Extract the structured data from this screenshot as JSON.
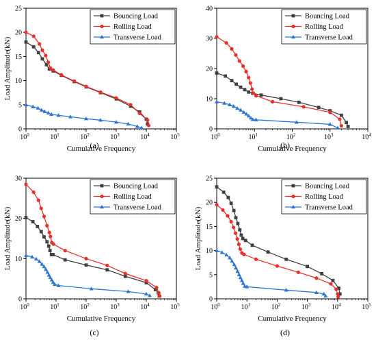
{
  "chart_data": [
    {
      "type": "line",
      "panel_label": "(a)",
      "xlabel": "Cumulative Frequency",
      "ylabel": "Load Amplitude(kN)",
      "xscale": "log",
      "xlim": [
        1,
        100000
      ],
      "ylim": [
        0,
        25
      ],
      "yticks": [
        0,
        5,
        10,
        15,
        20,
        25
      ],
      "legend": "top-right",
      "grid": false,
      "series": [
        {
          "name": "Bouncing Load",
          "color": "#404040",
          "marker": "square",
          "points": [
            [
              1,
              18
            ],
            [
              1.8,
              17
            ],
            [
              2.6,
              15.8
            ],
            [
              3.5,
              14.5
            ],
            [
              4.8,
              13.3
            ],
            [
              6,
              12.4
            ],
            [
              8,
              12
            ],
            [
              15,
              11.1
            ],
            [
              40,
              9.8
            ],
            [
              100,
              8.7
            ],
            [
              300,
              7.5
            ],
            [
              1000,
              6.2
            ],
            [
              3000,
              4.7
            ],
            [
              6000,
              3.5
            ],
            [
              10000,
              2
            ],
            [
              11000,
              1
            ]
          ]
        },
        {
          "name": "Rolling Load",
          "color": "#e8302a",
          "marker": "circle",
          "points": [
            [
              1,
              20
            ],
            [
              1.8,
              19.2
            ],
            [
              2.8,
              17.6
            ],
            [
              3.5,
              16.3
            ],
            [
              4.5,
              15.2
            ],
            [
              5.5,
              13.8
            ],
            [
              6.5,
              12.6
            ],
            [
              8,
              12.2
            ],
            [
              15,
              11.2
            ],
            [
              40,
              9.9
            ],
            [
              100,
              8.8
            ],
            [
              300,
              7.6
            ],
            [
              1000,
              6.4
            ],
            [
              3000,
              5
            ],
            [
              6000,
              3.2
            ],
            [
              11000,
              1.8
            ],
            [
              12000,
              0.7
            ]
          ]
        },
        {
          "name": "Transverse Load",
          "color": "#2e75d1",
          "marker": "triangle",
          "points": [
            [
              1,
              5
            ],
            [
              1.7,
              4.6
            ],
            [
              2.5,
              4.3
            ],
            [
              3.3,
              3.9
            ],
            [
              4.2,
              3.6
            ],
            [
              5.5,
              3.3
            ],
            [
              7,
              3
            ],
            [
              12,
              2.8
            ],
            [
              30,
              2.5
            ],
            [
              100,
              2.1
            ],
            [
              300,
              1.8
            ],
            [
              1000,
              1.4
            ],
            [
              2500,
              1
            ],
            [
              5000,
              0.5
            ],
            [
              7000,
              0.2
            ]
          ]
        }
      ]
    },
    {
      "type": "line",
      "panel_label": "(b)",
      "xlabel": "Cumulative Frequency",
      "ylabel": "",
      "xscale": "log",
      "xlim": [
        1,
        10000
      ],
      "ylim": [
        0,
        40
      ],
      "yticks": [
        0,
        10,
        20,
        30,
        40
      ],
      "legend": "top-right",
      "grid": false,
      "series": [
        {
          "name": "Bouncing Load",
          "color": "#404040",
          "marker": "square",
          "points": [
            [
              1,
              18.5
            ],
            [
              1.7,
              17.5
            ],
            [
              2.5,
              16
            ],
            [
              3.3,
              14.8
            ],
            [
              4.3,
              13.8
            ],
            [
              5.5,
              13
            ],
            [
              7,
              12.2
            ],
            [
              9,
              11.8
            ],
            [
              15,
              11.2
            ],
            [
              50,
              10
            ],
            [
              150,
              8.8
            ],
            [
              500,
              7.1
            ],
            [
              1000,
              6
            ],
            [
              2000,
              4.5
            ],
            [
              2700,
              2.1
            ],
            [
              3000,
              0.8
            ]
          ]
        },
        {
          "name": "Rolling Load",
          "color": "#e8302a",
          "marker": "circle",
          "points": [
            [
              1,
              30.5
            ],
            [
              1.8,
              28.5
            ],
            [
              2.5,
              26.5
            ],
            [
              3.2,
              24.5
            ],
            [
              4,
              22.5
            ],
            [
              5,
              20.8
            ],
            [
              6,
              19
            ],
            [
              7,
              17
            ],
            [
              7.8,
              15.2
            ],
            [
              8.6,
              13.2
            ],
            [
              9.4,
              11.8
            ],
            [
              11,
              11
            ],
            [
              30,
              9
            ],
            [
              200,
              7.3
            ],
            [
              1000,
              5.5
            ],
            [
              1800,
              3.2
            ],
            [
              2000,
              1
            ]
          ]
        },
        {
          "name": "Transverse Load",
          "color": "#2e75d1",
          "marker": "triangle",
          "points": [
            [
              1,
              9
            ],
            [
              1.6,
              8.5
            ],
            [
              2.2,
              8
            ],
            [
              2.8,
              7.5
            ],
            [
              3.5,
              6.8
            ],
            [
              4.3,
              6.2
            ],
            [
              5.2,
              5.5
            ],
            [
              6.1,
              4.9
            ],
            [
              7,
              4.3
            ],
            [
              8,
              3.6
            ],
            [
              9,
              3.1
            ],
            [
              11,
              3
            ],
            [
              130,
              2.2
            ],
            [
              1000,
              1.5
            ],
            [
              1600,
              0.3
            ]
          ]
        }
      ]
    },
    {
      "type": "line",
      "panel_label": "(c)",
      "xlabel": "Cumulative Frequency",
      "ylabel": "Load Amplitude(kN)",
      "xscale": "log",
      "xlim": [
        1,
        100000
      ],
      "ylim": [
        0,
        30
      ],
      "yticks": [
        0,
        10,
        20,
        30
      ],
      "legend": "top-right",
      "grid": false,
      "series": [
        {
          "name": "Bouncing Load",
          "color": "#404040",
          "marker": "square",
          "points": [
            [
              1,
              20.2
            ],
            [
              1.7,
              19.2
            ],
            [
              2.4,
              18
            ],
            [
              3.2,
              16.7
            ],
            [
              4,
              15.4
            ],
            [
              5,
              14.2
            ],
            [
              5.7,
              13.1
            ],
            [
              6.3,
              12
            ],
            [
              7,
              11
            ],
            [
              8,
              11
            ],
            [
              20,
              9.7
            ],
            [
              100,
              8.4
            ],
            [
              500,
              7.2
            ],
            [
              2000,
              5.6
            ],
            [
              10000,
              4
            ],
            [
              20000,
              2.3
            ],
            [
              25000,
              1.5
            ],
            [
              27000,
              0.7
            ]
          ]
        },
        {
          "name": "Rolling Load",
          "color": "#e8302a",
          "marker": "circle",
          "points": [
            [
              1,
              28.5
            ],
            [
              1.8,
              26.5
            ],
            [
              2.6,
              24.5
            ],
            [
              3.2,
              22.5
            ],
            [
              4,
              20.5
            ],
            [
              5,
              18.2
            ],
            [
              6,
              16.5
            ],
            [
              6.5,
              15.5
            ],
            [
              7.2,
              14
            ],
            [
              8.2,
              13.6
            ],
            [
              20,
              12
            ],
            [
              100,
              10
            ],
            [
              500,
              8.3
            ],
            [
              2000,
              6.3
            ],
            [
              10000,
              4.5
            ],
            [
              22000,
              2.8
            ],
            [
              26000,
              1.5
            ],
            [
              28000,
              0.7
            ]
          ]
        },
        {
          "name": "Transverse Load",
          "color": "#2e75d1",
          "marker": "triangle",
          "points": [
            [
              1,
              10.8
            ],
            [
              1.6,
              10.4
            ],
            [
              2.2,
              9.9
            ],
            [
              2.8,
              9.3
            ],
            [
              3.4,
              8.6
            ],
            [
              4,
              8
            ],
            [
              4.6,
              7.3
            ],
            [
              5.2,
              6.6
            ],
            [
              5.8,
              5.9
            ],
            [
              6.4,
              5.3
            ],
            [
              7.2,
              4.7
            ],
            [
              8,
              4.1
            ],
            [
              9,
              3.6
            ],
            [
              12,
              3.3
            ],
            [
              150,
              2.5
            ],
            [
              2500,
              1.8
            ],
            [
              10000,
              1.2
            ],
            [
              13000,
              0.8
            ]
          ]
        }
      ]
    },
    {
      "type": "line",
      "panel_label": "(d)",
      "xlabel": "Cumulative Frequency",
      "ylabel": "Load Amplitude(kN)",
      "xscale": "log",
      "xlim": [
        1,
        100000
      ],
      "ylim": [
        0,
        25
      ],
      "yticks": [
        0,
        5,
        10,
        15,
        20,
        25
      ],
      "legend": "top-right",
      "grid": false,
      "series": [
        {
          "name": "Bouncing Load",
          "color": "#404040",
          "marker": "square",
          "points": [
            [
              1,
              23.2
            ],
            [
              1.7,
              22.1
            ],
            [
              2.4,
              21
            ],
            [
              3,
              19.8
            ],
            [
              3.7,
              18.3
            ],
            [
              4.3,
              16.8
            ],
            [
              5,
              15.6
            ],
            [
              5.8,
              14.3
            ],
            [
              6.5,
              13.2
            ],
            [
              7.3,
              12.5
            ],
            [
              9,
              12.1
            ],
            [
              15,
              11.1
            ],
            [
              50,
              9.7
            ],
            [
              200,
              8.2
            ],
            [
              1000,
              6.7
            ],
            [
              3000,
              5.2
            ],
            [
              7000,
              3.8
            ],
            [
              11000,
              2.2
            ],
            [
              12000,
              1
            ]
          ]
        },
        {
          "name": "Rolling Load",
          "color": "#e8302a",
          "marker": "circle",
          "points": [
            [
              1,
              19.5
            ],
            [
              1.6,
              18.4
            ],
            [
              2.3,
              17.2
            ],
            [
              3,
              16
            ],
            [
              3.6,
              14.8
            ],
            [
              4.2,
              13.6
            ],
            [
              4.8,
              12.4
            ],
            [
              5.4,
              11.3
            ],
            [
              6,
              10.3
            ],
            [
              6.8,
              9.5
            ],
            [
              8,
              9.2
            ],
            [
              20,
              8.2
            ],
            [
              100,
              6.8
            ],
            [
              500,
              5.5
            ],
            [
              2000,
              4.3
            ],
            [
              6000,
              3.1
            ],
            [
              9000,
              2
            ],
            [
              10000,
              1
            ],
            [
              10500,
              0.4
            ]
          ]
        },
        {
          "name": "Transverse Load",
          "color": "#2e75d1",
          "marker": "triangle",
          "points": [
            [
              1,
              10
            ],
            [
              1.5,
              9.6
            ],
            [
              2.1,
              9.1
            ],
            [
              2.7,
              8.5
            ],
            [
              3.2,
              7.8
            ],
            [
              3.8,
              7.1
            ],
            [
              4.3,
              6.4
            ],
            [
              4.9,
              5.7
            ],
            [
              5.5,
              5
            ],
            [
              6.1,
              4.4
            ],
            [
              6.8,
              3.8
            ],
            [
              7.5,
              3.2
            ],
            [
              8.5,
              2.6
            ],
            [
              10,
              2.5
            ],
            [
              200,
              1.8
            ],
            [
              2000,
              1.3
            ],
            [
              3500,
              1
            ],
            [
              4000,
              0.6
            ]
          ]
        }
      ]
    }
  ]
}
